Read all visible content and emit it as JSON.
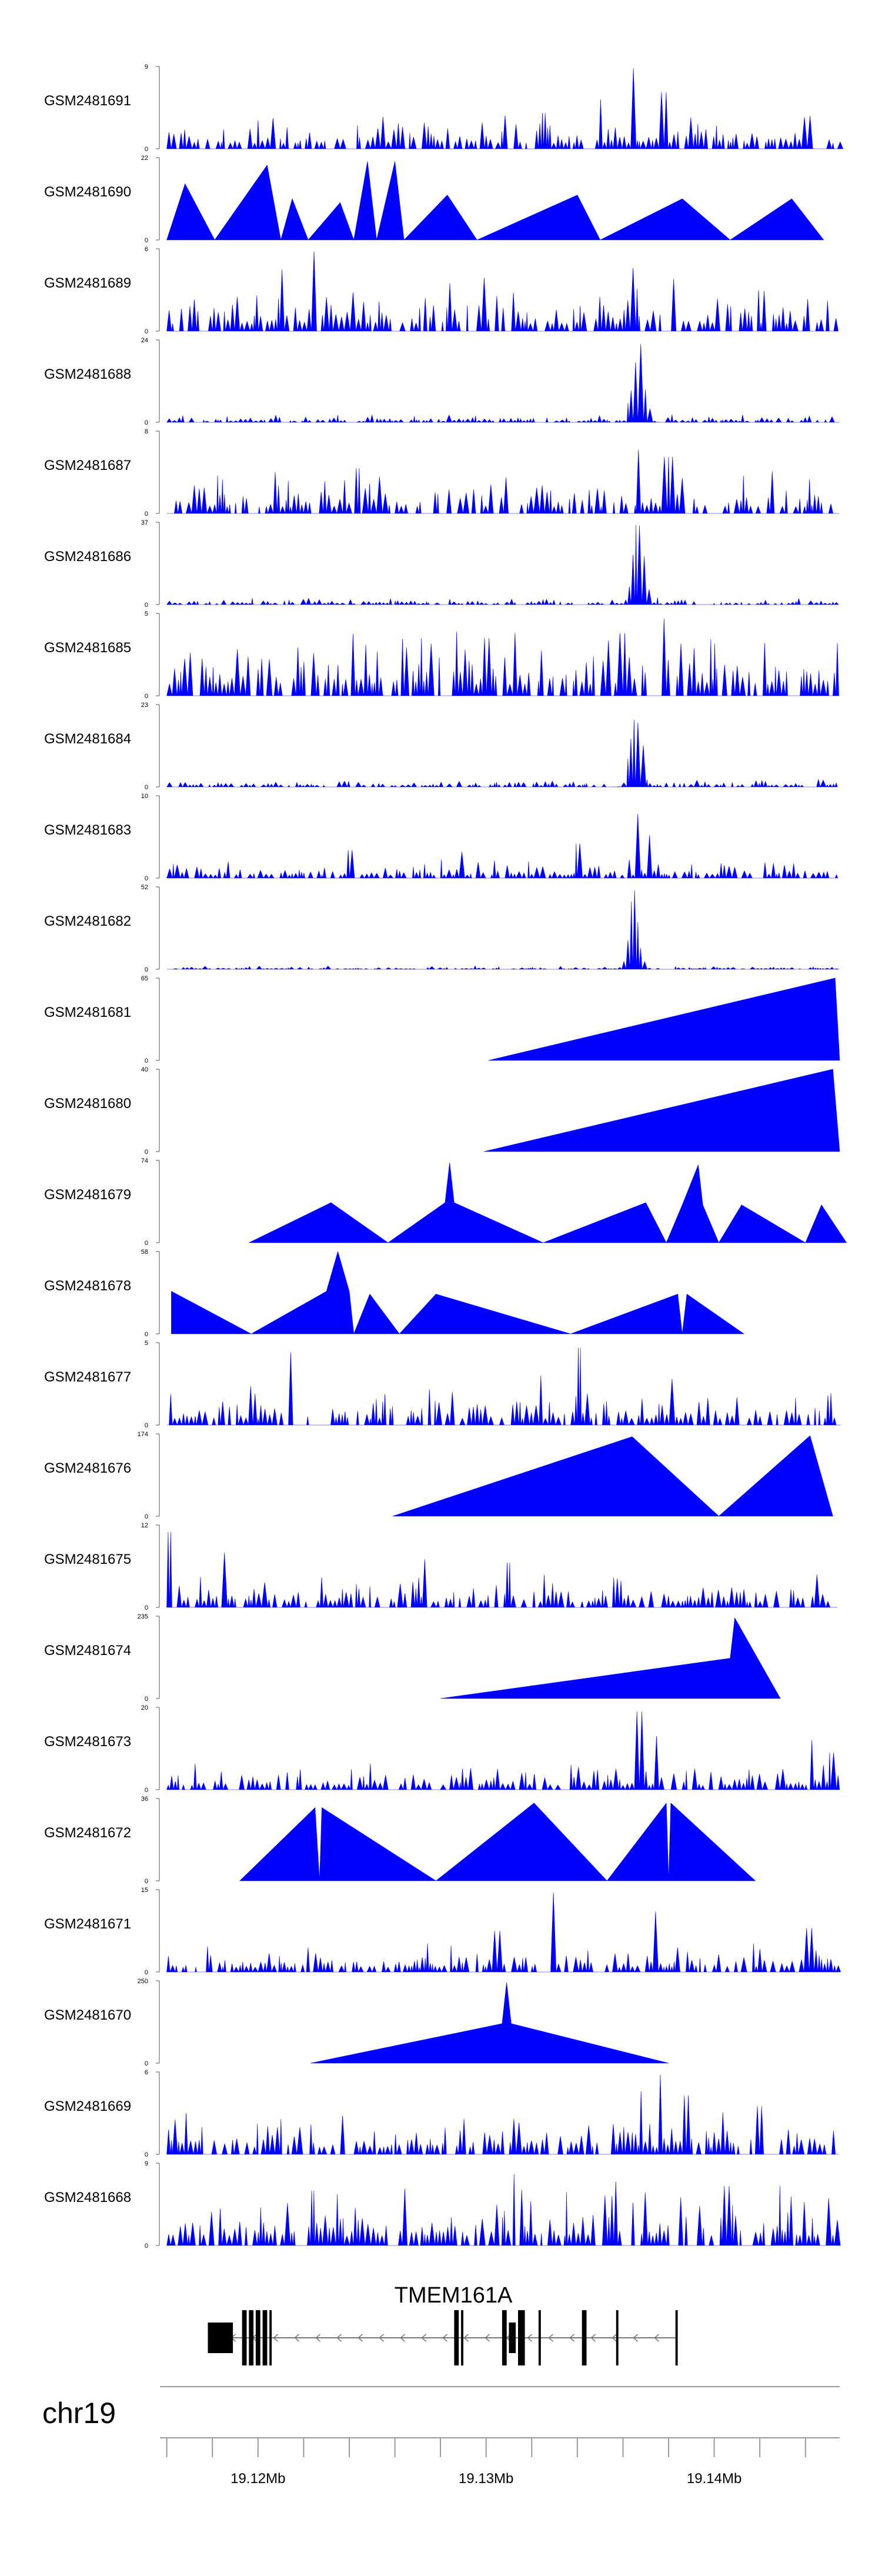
{
  "colors": {
    "signal": "#0000ff",
    "gene": "#000000",
    "axis": "#555555"
  },
  "chart_data": {
    "type": "area",
    "title": "",
    "xlabel": "",
    "ylabel": "",
    "chromosome": "chr19",
    "xlim": [
      19.1157,
      19.1455
    ],
    "x_ticks": [
      19.12,
      19.13,
      19.14
    ],
    "x_tick_labels": [
      "19.12Mb",
      "19.13Mb",
      "19.14Mb"
    ],
    "gene": {
      "name": "TMEM161A",
      "strand": "-",
      "start": 19.1178,
      "end": 19.1383,
      "exons": [
        [
          19.1178,
          19.1186
        ],
        [
          19.1186,
          19.1189
        ],
        [
          19.1193,
          19.1195
        ],
        [
          19.1196,
          19.1198
        ],
        [
          19.1199,
          19.1201
        ],
        [
          19.1202,
          19.1204
        ],
        [
          19.1205,
          19.1206
        ],
        [
          19.1286,
          19.1288
        ],
        [
          19.1289,
          19.129
        ],
        [
          19.1307,
          19.1309
        ],
        [
          19.131,
          19.1313
        ],
        [
          19.1314,
          19.1317
        ],
        [
          19.1323,
          19.1324
        ],
        [
          19.1342,
          19.1344
        ],
        [
          19.1357,
          19.1358
        ],
        [
          19.1383,
          19.1384
        ]
      ]
    },
    "tracks": [
      {
        "name": "GSM2481691",
        "ymax": 9,
        "mode": "noisy",
        "peaks": [
          [
            19.1365,
            8.8
          ],
          [
            19.135,
            5.4
          ],
          [
            19.1378,
            6.2
          ],
          [
            19.1442,
            3.6
          ],
          [
            19.1325,
            3.9
          ]
        ],
        "base": 2.4
      },
      {
        "name": "GSM2481690",
        "ymax": 22,
        "mode": "tri",
        "points": [
          [
            19.116,
            0
          ],
          [
            19.1168,
            15
          ],
          [
            19.1181,
            0
          ],
          [
            19.1204,
            20
          ],
          [
            19.121,
            0
          ],
          [
            19.1215,
            11
          ],
          [
            19.1222,
            0
          ],
          [
            19.1236,
            10
          ],
          [
            19.1242,
            0
          ],
          [
            19.1248,
            21
          ],
          [
            19.1252,
            0
          ],
          [
            19.126,
            21
          ],
          [
            19.1264,
            0
          ],
          [
            19.1283,
            12
          ],
          [
            19.1296,
            0
          ],
          [
            19.134,
            12
          ],
          [
            19.135,
            0
          ],
          [
            19.1386,
            11
          ],
          [
            19.1407,
            0
          ],
          [
            19.1434,
            11
          ],
          [
            19.1448,
            0
          ]
        ]
      },
      {
        "name": "GSM2481689",
        "ymax": 6,
        "mode": "noisy",
        "peaks": [
          [
            19.1224,
            5.8
          ],
          [
            19.121,
            4.5
          ],
          [
            19.1299,
            3.9
          ],
          [
            19.1364,
            4.6
          ],
          [
            19.1382,
            3.8
          ]
        ],
        "base": 2.2
      },
      {
        "name": "GSM2481688",
        "ymax": 24,
        "mode": "noisy-peak",
        "peak": [
          19.1366,
          22.5,
          0.00035
        ],
        "base": 1.4
      },
      {
        "name": "GSM2481687",
        "ymax": 8,
        "mode": "noisy",
        "peaks": [
          [
            19.1366,
            6.2
          ],
          [
            19.138,
            5.5
          ],
          [
            19.1425,
            4.1
          ],
          [
            19.1244,
            4.4
          ],
          [
            19.1208,
            4.0
          ]
        ],
        "base": 2.6
      },
      {
        "name": "GSM2481686",
        "ymax": 37,
        "mode": "noisy-peak",
        "peak": [
          19.1366,
          34.5,
          0.00035
        ],
        "base": 2.0
      },
      {
        "name": "GSM2481685",
        "ymax": 5,
        "mode": "noisy",
        "peaks": [
          [
            19.1378,
            4.7
          ],
          [
            19.136,
            3.8
          ],
          [
            19.13,
            3.5
          ],
          [
            19.1422,
            3.2
          ]
        ],
        "base": 2.8
      },
      {
        "name": "GSM2481684",
        "ymax": 23,
        "mode": "noisy-peak",
        "peak": [
          19.1365,
          20.0,
          0.00035
        ],
        "base": 1.6
      },
      {
        "name": "GSM2481683",
        "ymax": 10,
        "mode": "noisy",
        "peaks": [
          [
            19.1366,
            7.8
          ],
          [
            19.1372,
            5.2
          ],
          [
            19.134,
            4.2
          ],
          [
            19.124,
            3.4
          ],
          [
            19.129,
            3.2
          ]
        ],
        "base": 1.5
      },
      {
        "name": "GSM2481682",
        "ymax": 52,
        "mode": "noisy-peak",
        "peak": [
          19.1364,
          48.0,
          0.0003
        ],
        "base": 1.4
      },
      {
        "name": "GSM2481681",
        "ymax": 65,
        "mode": "tri",
        "points": [
          [
            19.1301,
            0
          ],
          [
            19.1453,
            65
          ],
          [
            19.1455,
            0
          ]
        ]
      },
      {
        "name": "GSM2481680",
        "ymax": 40,
        "mode": "tri",
        "points": [
          [
            19.1299,
            0
          ],
          [
            19.1452,
            40
          ],
          [
            19.1455,
            0
          ]
        ]
      },
      {
        "name": "GSM2481679",
        "ymax": 74,
        "mode": "tri",
        "points": [
          [
            19.1196,
            0
          ],
          [
            19.1232,
            36
          ],
          [
            19.1257,
            0
          ],
          [
            19.1282,
            36
          ],
          [
            19.1284,
            72
          ],
          [
            19.1286,
            36
          ],
          [
            19.1325,
            0
          ],
          [
            19.137,
            36
          ],
          [
            19.1379,
            0
          ],
          [
            19.1386,
            34
          ],
          [
            19.1393,
            70
          ],
          [
            19.1395,
            34
          ],
          [
            19.1402,
            0
          ],
          [
            19.1412,
            34
          ],
          [
            19.144,
            0
          ],
          [
            19.1447,
            34
          ],
          [
            19.1458,
            0
          ]
        ]
      },
      {
        "name": "GSM2481678",
        "ymax": 58,
        "mode": "tri",
        "points": [
          [
            19.1162,
            30
          ],
          [
            19.1197,
            0
          ],
          [
            19.123,
            30
          ],
          [
            19.1235,
            58
          ],
          [
            19.124,
            30
          ],
          [
            19.1242,
            0
          ],
          [
            19.1249,
            28
          ],
          [
            19.1262,
            0
          ],
          [
            19.1278,
            28
          ],
          [
            19.1337,
            0
          ],
          [
            19.1384,
            28
          ],
          [
            19.1386,
            0
          ],
          [
            19.1388,
            28
          ],
          [
            19.1413,
            0
          ]
        ]
      },
      {
        "name": "GSM2481677",
        "ymax": 5,
        "mode": "noisy",
        "peaks": [
          [
            19.1214,
            4.4
          ],
          [
            19.1341,
            4.7
          ],
          [
            19.1324,
            3.0
          ],
          [
            19.1382,
            2.8
          ]
        ],
        "base": 1.6
      },
      {
        "name": "GSM2481676",
        "ymax": 174,
        "mode": "tri",
        "points": [
          [
            19.1259,
            0
          ],
          [
            19.1364,
            168
          ],
          [
            19.1402,
            0
          ],
          [
            19.1442,
            170
          ],
          [
            19.1452,
            0
          ]
        ]
      },
      {
        "name": "GSM2481675",
        "ymax": 12,
        "mode": "noisy",
        "peaks": [
          [
            19.1161,
            11.0
          ],
          [
            19.1185,
            8.0
          ],
          [
            19.1273,
            7.0
          ],
          [
            19.131,
            6.5
          ]
        ],
        "base": 3.2
      },
      {
        "name": "GSM2481674",
        "ymax": 235,
        "mode": "tri",
        "points": [
          [
            19.128,
            0
          ],
          [
            19.1407,
            115
          ],
          [
            19.1409,
            230
          ],
          [
            19.1429,
            0
          ]
        ]
      },
      {
        "name": "GSM2481673",
        "ymax": 20,
        "mode": "noisy",
        "peaks": [
          [
            19.1367,
            19.0
          ],
          [
            19.1375,
            13.0
          ],
          [
            19.1443,
            12.0
          ],
          [
            19.1451,
            9.0
          ]
        ],
        "base": 4.2
      },
      {
        "name": "GSM2481672",
        "ymax": 36,
        "mode": "tri",
        "points": [
          [
            19.1192,
            0
          ],
          [
            19.1225,
            32
          ],
          [
            19.1227,
            0
          ],
          [
            19.1228,
            32
          ],
          [
            19.1278,
            0
          ],
          [
            19.1321,
            34
          ],
          [
            19.1353,
            0
          ],
          [
            19.1379,
            34
          ],
          [
            19.138,
            0
          ],
          [
            19.1381,
            34
          ],
          [
            19.1418,
            0
          ]
        ]
      },
      {
        "name": "GSM2481671",
        "ymax": 15,
        "mode": "noisy",
        "peaks": [
          [
            19.133,
            14.5
          ],
          [
            19.1374,
            11.0
          ],
          [
            19.1305,
            7.5
          ],
          [
            19.1442,
            8.0
          ]
        ],
        "base": 3.4
      },
      {
        "name": "GSM2481670",
        "ymax": 250,
        "mode": "tri",
        "points": [
          [
            19.1223,
            0
          ],
          [
            19.1307,
            120
          ],
          [
            19.1309,
            245
          ],
          [
            19.1311,
            120
          ],
          [
            19.138,
            0
          ]
        ]
      },
      {
        "name": "GSM2481669",
        "ymax": 6,
        "mode": "noisy",
        "peaks": [
          [
            19.1376,
            5.8
          ],
          [
            19.1368,
            4.6
          ],
          [
            19.1388,
            4.3
          ],
          [
            19.142,
            3.5
          ]
        ],
        "base": 2.0
      },
      {
        "name": "GSM2481668",
        "ymax": 9,
        "mode": "noisy",
        "peaks": [
          [
            19.1312,
            7.8
          ],
          [
            19.1357,
            7.0
          ],
          [
            19.1405,
            6.5
          ],
          [
            19.1224,
            6.0
          ],
          [
            19.1265,
            6.2
          ]
        ],
        "base": 4.2
      }
    ]
  }
}
